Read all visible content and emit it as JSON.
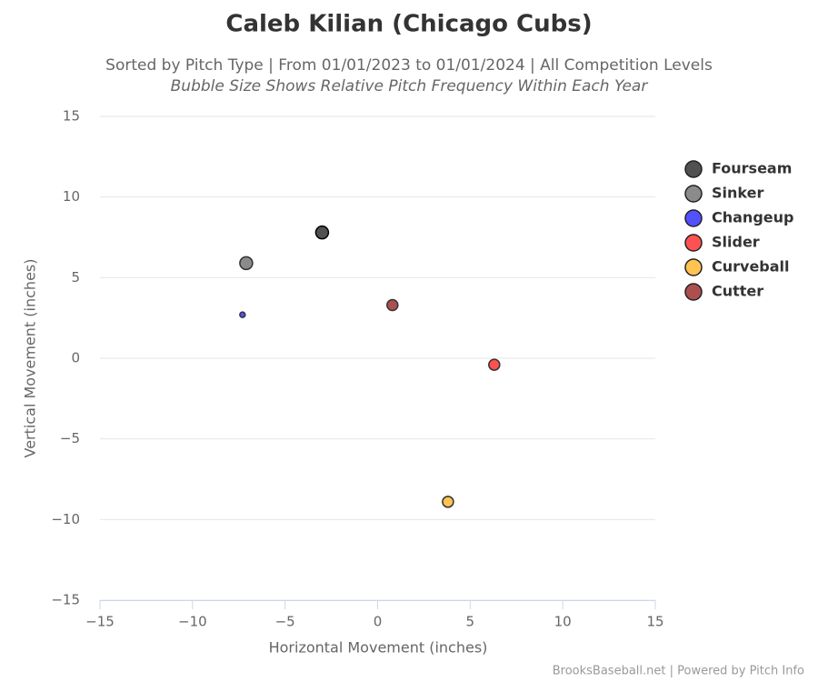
{
  "chart_data": {
    "type": "bubble",
    "title": "Caleb Kilian (Chicago Cubs)",
    "subtitle": "Sorted by Pitch Type | From 01/01/2023 to 01/01/2024 | All Competition Levels",
    "subtitle2": "Bubble Size Shows Relative Pitch Frequency Within Each Year",
    "x_label": "Horizontal Movement (inches)",
    "y_label": "Vertical Movement (inches)",
    "credits": "BrooksBaseball.net | Powered by Pitch Info",
    "xlim": [
      -15,
      15
    ],
    "ylim": [
      -15,
      15
    ],
    "xticks": [
      {
        "value": -15,
        "label": "−15"
      },
      {
        "value": -10,
        "label": "−10"
      },
      {
        "value": -5,
        "label": "−5"
      },
      0,
      5,
      10,
      15
    ],
    "yticks": [
      {
        "value": -15,
        "label": "−15"
      },
      {
        "value": -10,
        "label": "−10"
      },
      {
        "value": -5,
        "label": "−5"
      },
      0,
      5,
      10,
      15
    ],
    "grid": true,
    "legend": "right",
    "series": [
      {
        "name": "Fourseam",
        "color": "#333333",
        "x": [
          -3.0
        ],
        "y": [
          7.8
        ],
        "size": [
          7
        ]
      },
      {
        "name": "Sinker",
        "color": "#777777",
        "x": [
          -7.1
        ],
        "y": [
          5.9
        ],
        "size": [
          7
        ]
      },
      {
        "name": "Changeup",
        "color": "#3333ff",
        "x": [
          -7.3
        ],
        "y": [
          2.7
        ],
        "size": [
          3
        ]
      },
      {
        "name": "Slider",
        "color": "#ff3333",
        "x": [
          6.3
        ],
        "y": [
          -0.4
        ],
        "size": [
          6
        ]
      },
      {
        "name": "Curveball",
        "color": "#ffb833",
        "x": [
          3.8
        ],
        "y": [
          -8.9
        ],
        "size": [
          6
        ]
      },
      {
        "name": "Cutter",
        "color": "#a03030",
        "x": [
          0.8
        ],
        "y": [
          3.3
        ],
        "size": [
          6
        ]
      }
    ]
  }
}
